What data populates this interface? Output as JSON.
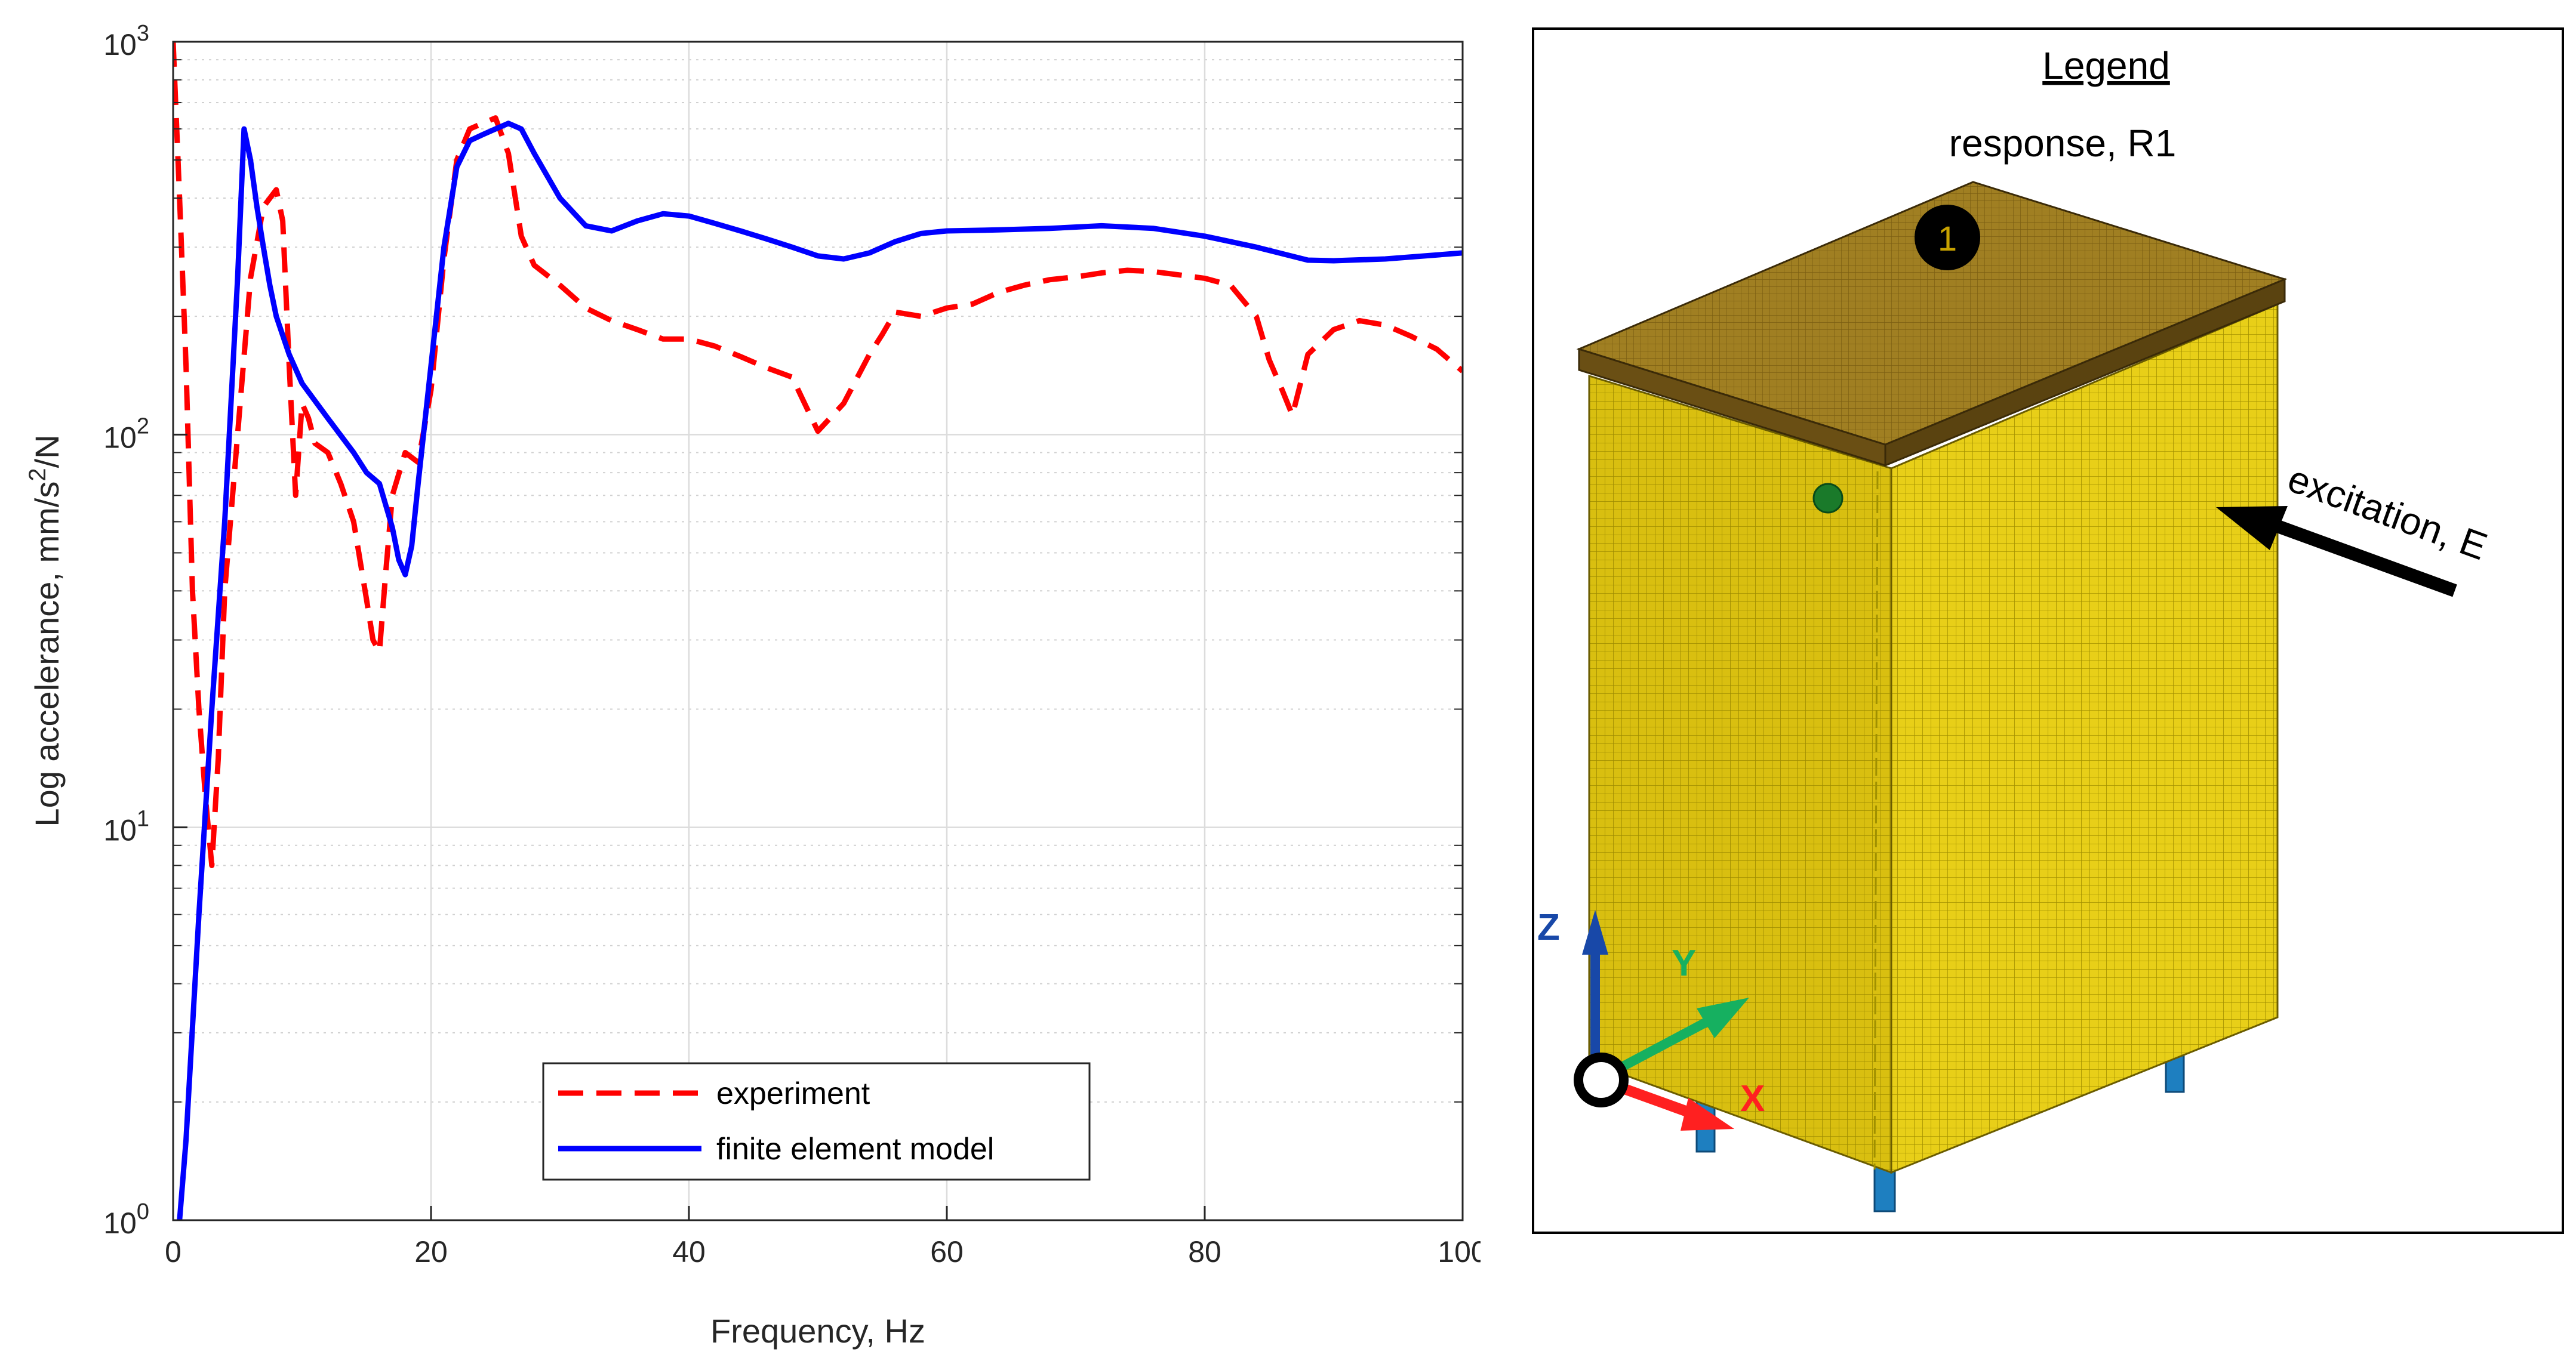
{
  "chart_data": {
    "type": "line",
    "title": "",
    "xlabel": "Frequency, Hz",
    "ylabel": "Log accelerance, mm/s",
    "ylabel_sup": "2",
    "ylabel_tail": "/N",
    "xlim": [
      0,
      100
    ],
    "ylim": [
      1,
      1000
    ],
    "yscale": "log",
    "grid": true,
    "x_ticks": [
      "0",
      "20",
      "40",
      "60",
      "80",
      "100"
    ],
    "y_ticks": [
      {
        "base": "10",
        "exp": "0"
      },
      {
        "base": "10",
        "exp": "1"
      },
      {
        "base": "10",
        "exp": "2"
      },
      {
        "base": "10",
        "exp": "3"
      }
    ],
    "legend_position": "bottom-center",
    "series": [
      {
        "name": "experiment",
        "color": "#ff0000",
        "style": "dashed",
        "x": [
          0,
          0.5,
          1,
          1.5,
          2,
          2.5,
          3,
          3.5,
          4,
          5,
          6,
          7,
          8,
          8.5,
          9,
          9.5,
          10,
          10.5,
          11,
          12,
          13,
          14,
          15,
          15.5,
          16,
          16.5,
          17,
          18,
          19,
          20,
          21,
          22,
          23,
          24,
          25,
          26,
          27,
          28,
          30,
          32,
          34,
          36,
          38,
          40,
          42,
          44,
          46,
          48,
          50,
          52,
          54,
          55,
          56,
          58,
          60,
          62,
          64,
          66,
          68,
          70,
          72,
          74,
          76,
          78,
          80,
          82,
          84,
          85,
          86,
          86.8,
          88,
          90,
          92,
          94,
          96,
          98,
          100
        ],
        "y": [
          1000,
          400,
          150,
          40,
          20,
          12,
          8,
          15,
          40,
          100,
          250,
          380,
          420,
          350,
          150,
          70,
          120,
          110,
          95,
          90,
          75,
          60,
          38,
          30,
          28,
          45,
          70,
          90,
          85,
          130,
          280,
          500,
          600,
          620,
          640,
          520,
          320,
          270,
          240,
          210,
          195,
          185,
          175,
          175,
          168,
          158,
          148,
          140,
          102,
          120,
          160,
          180,
          205,
          200,
          210,
          215,
          230,
          240,
          248,
          252,
          258,
          262,
          260,
          255,
          250,
          240,
          200,
          155,
          130,
          112,
          160,
          185,
          195,
          190,
          178,
          165,
          145
        ]
      },
      {
        "name": "finite element model",
        "color": "#0000ff",
        "style": "solid",
        "x": [
          0.5,
          1,
          2,
          3,
          4,
          5,
          5.5,
          6,
          6.5,
          7,
          7.5,
          8,
          9,
          10,
          12,
          14,
          15,
          16,
          17,
          17.5,
          18,
          18.5,
          19,
          20,
          21,
          22,
          23,
          24,
          25,
          26,
          27,
          28,
          30,
          32,
          34,
          36,
          38,
          40,
          42,
          44,
          46,
          48,
          50,
          52,
          54,
          56,
          58,
          60,
          64,
          68,
          72,
          76,
          80,
          84,
          88,
          90,
          94,
          100
        ],
        "y": [
          1,
          1.6,
          6,
          20,
          60,
          250,
          600,
          500,
          380,
          300,
          240,
          200,
          160,
          135,
          110,
          90,
          80,
          75,
          58,
          48,
          44,
          52,
          75,
          150,
          300,
          480,
          560,
          580,
          600,
          620,
          600,
          520,
          400,
          340,
          330,
          350,
          365,
          360,
          345,
          330,
          315,
          300,
          285,
          280,
          290,
          310,
          325,
          330,
          332,
          335,
          340,
          335,
          320,
          300,
          278,
          277,
          280,
          290
        ]
      }
    ]
  },
  "figure": {
    "legend_heading": "Legend",
    "response_label": "response, R1",
    "response_marker": "1",
    "excitation_label": "excitation, E",
    "axis_z": "Z",
    "axis_y": "Y",
    "axis_x": "X",
    "colors": {
      "top": "#9a7b22",
      "top_edge": "#5a4310",
      "body_front": "#d9bf10",
      "body_side": "#e6cc14",
      "mesh": "#8a7a00",
      "foot": "#1e7fc0",
      "z_axis": "#1848a8",
      "y_axis": "#16b060",
      "x_axis": "#ff2020"
    }
  }
}
